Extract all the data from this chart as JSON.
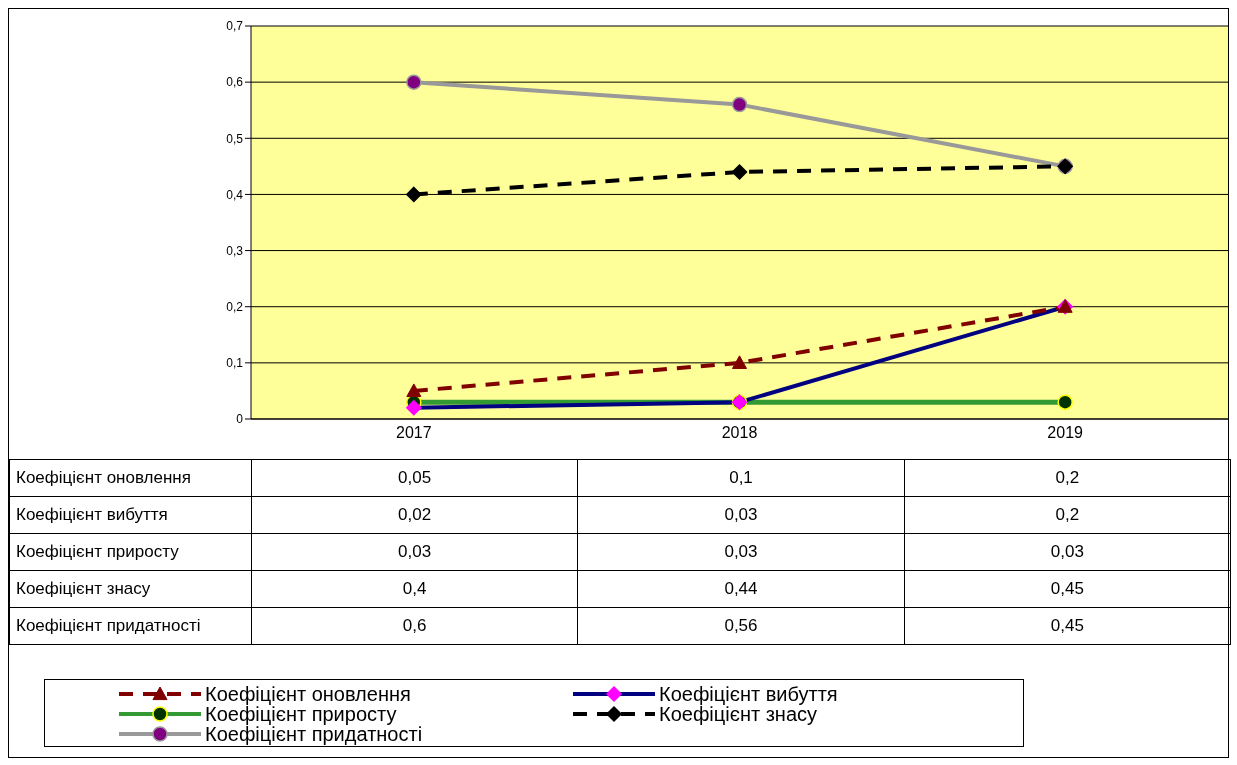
{
  "chart_data": {
    "type": "line",
    "categories": [
      "2017",
      "2018",
      "2019"
    ],
    "series": [
      {
        "name": "Коефіцієнт оновлення",
        "color": "#800000",
        "values": [
          0.05,
          0.1,
          0.2
        ],
        "value_labels": [
          "0,05",
          "0,1",
          "0,2"
        ],
        "marker": "triangle",
        "line_style": "dashed"
      },
      {
        "name": "Коефіцієнт вибуття",
        "color": "#000080",
        "values": [
          0.02,
          0.03,
          0.2
        ],
        "value_labels": [
          "0,02",
          "0,03",
          "0,2"
        ],
        "marker": "diamond",
        "line_style": "solid"
      },
      {
        "name": "Коефіцієнт приросту",
        "color": "#339933",
        "values": [
          0.03,
          0.03,
          0.03
        ],
        "value_labels": [
          "0,03",
          "0,03",
          "0,03"
        ],
        "marker": "circle",
        "line_style": "solid"
      },
      {
        "name": "Коефіцієнт знасу",
        "color": "#000000",
        "values": [
          0.4,
          0.44,
          0.45
        ],
        "value_labels": [
          "0,4",
          "0,44",
          "0,45"
        ],
        "marker": "diamond",
        "line_style": "dashed"
      },
      {
        "name": "Коефіцієнт придатності",
        "color": "#999999",
        "values": [
          0.6,
          0.56,
          0.45
        ],
        "value_labels": [
          "0,6",
          "0,56",
          "0,45"
        ],
        "marker": "circle",
        "line_style": "solid"
      }
    ],
    "ylim": [
      0,
      0.7
    ],
    "yticks": [
      0,
      {
        "value": 0.1,
        "label": "0,1"
      },
      {
        "value": 0.2,
        "label": "0,2"
      },
      {
        "value": 0.3,
        "label": "0,3"
      },
      {
        "value": 0.4,
        "label": "0,4"
      },
      {
        "value": 0.5,
        "label": "0,5"
      },
      {
        "value": 0.6,
        "label": "0,6"
      },
      {
        "value": 0.7,
        "label": "0,7"
      }
    ],
    "grid": "y",
    "legend": "bottom"
  }
}
